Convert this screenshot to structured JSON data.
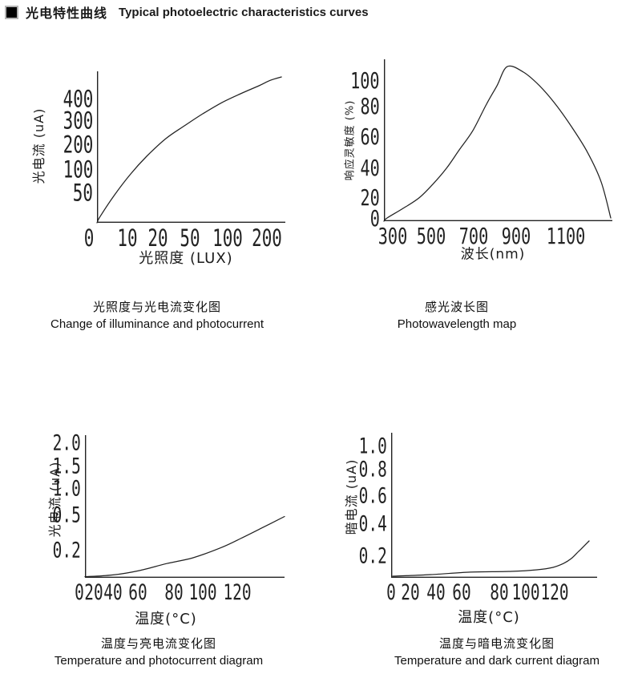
{
  "header": {
    "title_zh": "光电特性曲线",
    "title_en": "Typical photoelectric characteristics curves"
  },
  "captions": [
    {
      "zh": "光照度与光电流变化图",
      "en": "Change of illuminance and photocurrent"
    },
    {
      "zh": "感光波长图",
      "en": "Photowavelength map"
    },
    {
      "zh": "温度与亮电流变化图",
      "en": "Temperature and photocurrent diagram"
    },
    {
      "zh": "温度与暗电流变化图",
      "en": "Temperature and dark current diagram"
    }
  ],
  "colors": {
    "ink": "#1a1a1a",
    "axis": "#222222",
    "background": "#ffffff"
  },
  "chart_data": [
    {
      "type": "line",
      "title_zh": "光照度与光电流变化图",
      "title_en": "Change of illuminance and photocurrent",
      "xlabel": "光照度 (LUX)",
      "ylabel": "光电流 (uA)",
      "grid": false,
      "legend": null,
      "x_scale": "nonlinear-log-like",
      "y_scale": "nonlinear-log-like",
      "x_range": "0–250 LUX",
      "y_range": "0–460 uA",
      "x_ticks": [
        {
          "label": "0",
          "f": -0.043
        },
        {
          "label": "10",
          "f": 0.162
        },
        {
          "label": "20",
          "f": 0.323
        },
        {
          "label": "50",
          "f": 0.494
        },
        {
          "label": "100",
          "f": 0.694
        },
        {
          "label": "200",
          "f": 0.902
        }
      ],
      "y_ticks": [
        {
          "label": "400",
          "f": 0.815
        },
        {
          "label": "300",
          "f": 0.672
        },
        {
          "label": "200",
          "f": 0.513
        },
        {
          "label": "100",
          "f": 0.349
        },
        {
          "label": "50",
          "f": 0.196
        }
      ],
      "data_points": [
        {
          "lux": 0,
          "uA": 0
        },
        {
          "lux": 10,
          "uA": 45
        },
        {
          "lux": 20,
          "uA": 105
        },
        {
          "lux": 50,
          "uA": 230
        },
        {
          "lux": 100,
          "uA": 350
        },
        {
          "lux": 150,
          "uA": 420
        },
        {
          "lux": 200,
          "uA": 450
        },
        {
          "lux": 250,
          "uA": 465
        }
      ],
      "curve_f": [
        [
          0,
          0
        ],
        [
          0.017,
          0.042
        ],
        [
          0.094,
          0.185
        ],
        [
          0.179,
          0.323
        ],
        [
          0.264,
          0.439
        ],
        [
          0.366,
          0.556
        ],
        [
          0.464,
          0.64
        ],
        [
          0.562,
          0.72
        ],
        [
          0.664,
          0.794
        ],
        [
          0.762,
          0.852
        ],
        [
          0.86,
          0.905
        ],
        [
          0.919,
          0.94
        ],
        [
          0.979,
          0.963
        ]
      ]
    },
    {
      "type": "line",
      "title_zh": "感光波长图",
      "title_en": "Photowavelength map",
      "xlabel": "波长(nm)",
      "ylabel": "响应灵敏度 (%)",
      "grid": false,
      "legend": null,
      "x_scale": "linear",
      "y_scale": "linear",
      "x_range": "250–1300 nm",
      "y_range": "0–110 %",
      "x_ticks": [
        {
          "label": "300",
          "f": 0.039
        },
        {
          "label": "500",
          "f": 0.207
        },
        {
          "label": "700",
          "f": 0.393
        },
        {
          "label": "900",
          "f": 0.579
        },
        {
          "label": "1100",
          "f": 0.796
        }
      ],
      "y_ticks": [
        {
          "label": "100",
          "f": 0.866
        },
        {
          "label": "80",
          "f": 0.708
        },
        {
          "label": "60",
          "f": 0.52
        },
        {
          "label": "40",
          "f": 0.327
        },
        {
          "label": "20",
          "f": 0.144
        },
        {
          "label": "0",
          "f": 0.015
        }
      ],
      "data_points": [
        {
          "nm": 250,
          "pct": 0
        },
        {
          "nm": 300,
          "pct": 4
        },
        {
          "nm": 400,
          "pct": 12
        },
        {
          "nm": 500,
          "pct": 24
        },
        {
          "nm": 600,
          "pct": 46
        },
        {
          "nm": 700,
          "pct": 78
        },
        {
          "nm": 800,
          "pct": 104
        },
        {
          "nm": 830,
          "pct": 107
        },
        {
          "nm": 900,
          "pct": 99
        },
        {
          "nm": 1000,
          "pct": 73
        },
        {
          "nm": 1100,
          "pct": 43
        },
        {
          "nm": 1200,
          "pct": 14
        },
        {
          "nm": 1290,
          "pct": 0
        }
      ],
      "curve_f": [
        [
          0,
          0
        ],
        [
          0.014,
          0.02
        ],
        [
          0.084,
          0.079
        ],
        [
          0.154,
          0.144
        ],
        [
          0.214,
          0.228
        ],
        [
          0.274,
          0.327
        ],
        [
          0.33,
          0.441
        ],
        [
          0.389,
          0.559
        ],
        [
          0.449,
          0.723
        ],
        [
          0.495,
          0.837
        ],
        [
          0.54,
          0.955
        ],
        [
          0.611,
          0.921
        ],
        [
          0.681,
          0.837
        ],
        [
          0.751,
          0.723
        ],
        [
          0.821,
          0.584
        ],
        [
          0.891,
          0.426
        ],
        [
          0.951,
          0.243
        ],
        [
          0.993,
          0.02
        ]
      ]
    },
    {
      "type": "line",
      "title_zh": "温度与亮电流变化图",
      "title_en": "Temperature and photocurrent diagram",
      "xlabel": "温度(°C)",
      "ylabel": "光电流 (uA)",
      "grid": false,
      "legend": null,
      "x_scale": "nonlinear",
      "y_scale": "nonlinear",
      "x_range": "0–135 °C",
      "y_range": "0–2.0 uA",
      "x_ticks": [
        {
          "label": "0",
          "f": -0.028
        },
        {
          "label": "20",
          "f": 0.044
        },
        {
          "label": "40",
          "f": 0.141
        },
        {
          "label": "60",
          "f": 0.265
        },
        {
          "label": "80",
          "f": 0.446
        },
        {
          "label": "100",
          "f": 0.59
        },
        {
          "label": "120",
          "f": 0.763
        }
      ],
      "y_ticks": [
        {
          "label": "2.0",
          "f": 0.944
        },
        {
          "label": "1.5",
          "f": 0.781
        },
        {
          "label": "1.0",
          "f": 0.624
        },
        {
          "label": "0.5",
          "f": 0.438
        },
        {
          "label": "0.2",
          "f": 0.191
        }
      ],
      "data_points": [
        {
          "degC": 0,
          "uA": 0.01
        },
        {
          "degC": 20,
          "uA": 0.02
        },
        {
          "degC": 40,
          "uA": 0.04
        },
        {
          "degC": 60,
          "uA": 0.07
        },
        {
          "degC": 80,
          "uA": 0.11
        },
        {
          "degC": 100,
          "uA": 0.18
        },
        {
          "degC": 120,
          "uA": 0.28
        },
        {
          "degC": 135,
          "uA": 0.48
        }
      ],
      "curve_f": [
        [
          0,
          0.008
        ],
        [
          0.14,
          0.02
        ],
        [
          0.27,
          0.05
        ],
        [
          0.41,
          0.1
        ],
        [
          0.54,
          0.14
        ],
        [
          0.68,
          0.21
        ],
        [
          0.78,
          0.275
        ],
        [
          0.88,
          0.345
        ],
        [
          1.0,
          0.43
        ]
      ]
    },
    {
      "type": "line",
      "title_zh": "温度与暗电流变化图",
      "title_en": "Temperature and dark current diagram",
      "xlabel": "温度(°C)",
      "ylabel": "暗电流 (uA)",
      "grid": false,
      "legend": null,
      "x_scale": "nonlinear",
      "y_scale": "linear",
      "x_range": "0–138 °C",
      "y_range": "0–1.0 uA",
      "x_ticks": [
        {
          "label": "0",
          "f": 0.0
        },
        {
          "label": "20",
          "f": 0.093
        },
        {
          "label": "40",
          "f": 0.218
        },
        {
          "label": "60",
          "f": 0.342
        },
        {
          "label": "80",
          "f": 0.525
        },
        {
          "label": "100",
          "f": 0.654
        },
        {
          "label": "120",
          "f": 0.794
        }
      ],
      "y_ticks": [
        {
          "label": "1.0",
          "f": 0.906
        },
        {
          "label": "0.8",
          "f": 0.746
        },
        {
          "label": "0.6",
          "f": 0.564
        },
        {
          "label": "0.4",
          "f": 0.37
        },
        {
          "label": "0.2",
          "f": 0.149
        }
      ],
      "data_points": [
        {
          "degC": 0,
          "uA": 0.01
        },
        {
          "degC": 20,
          "uA": 0.03
        },
        {
          "degC": 40,
          "uA": 0.04
        },
        {
          "degC": 60,
          "uA": 0.05
        },
        {
          "degC": 80,
          "uA": 0.05
        },
        {
          "degC": 100,
          "uA": 0.06
        },
        {
          "degC": 120,
          "uA": 0.1
        },
        {
          "degC": 130,
          "uA": 0.22
        },
        {
          "degC": 135,
          "uA": 0.33
        }
      ],
      "curve_f": [
        [
          0.008,
          0.011
        ],
        [
          0.191,
          0.022
        ],
        [
          0.385,
          0.039
        ],
        [
          0.58,
          0.044
        ],
        [
          0.708,
          0.055
        ],
        [
          0.786,
          0.072
        ],
        [
          0.837,
          0.099
        ],
        [
          0.875,
          0.133
        ],
        [
          0.91,
          0.182
        ],
        [
          0.934,
          0.215
        ],
        [
          0.961,
          0.254
        ]
      ]
    }
  ]
}
